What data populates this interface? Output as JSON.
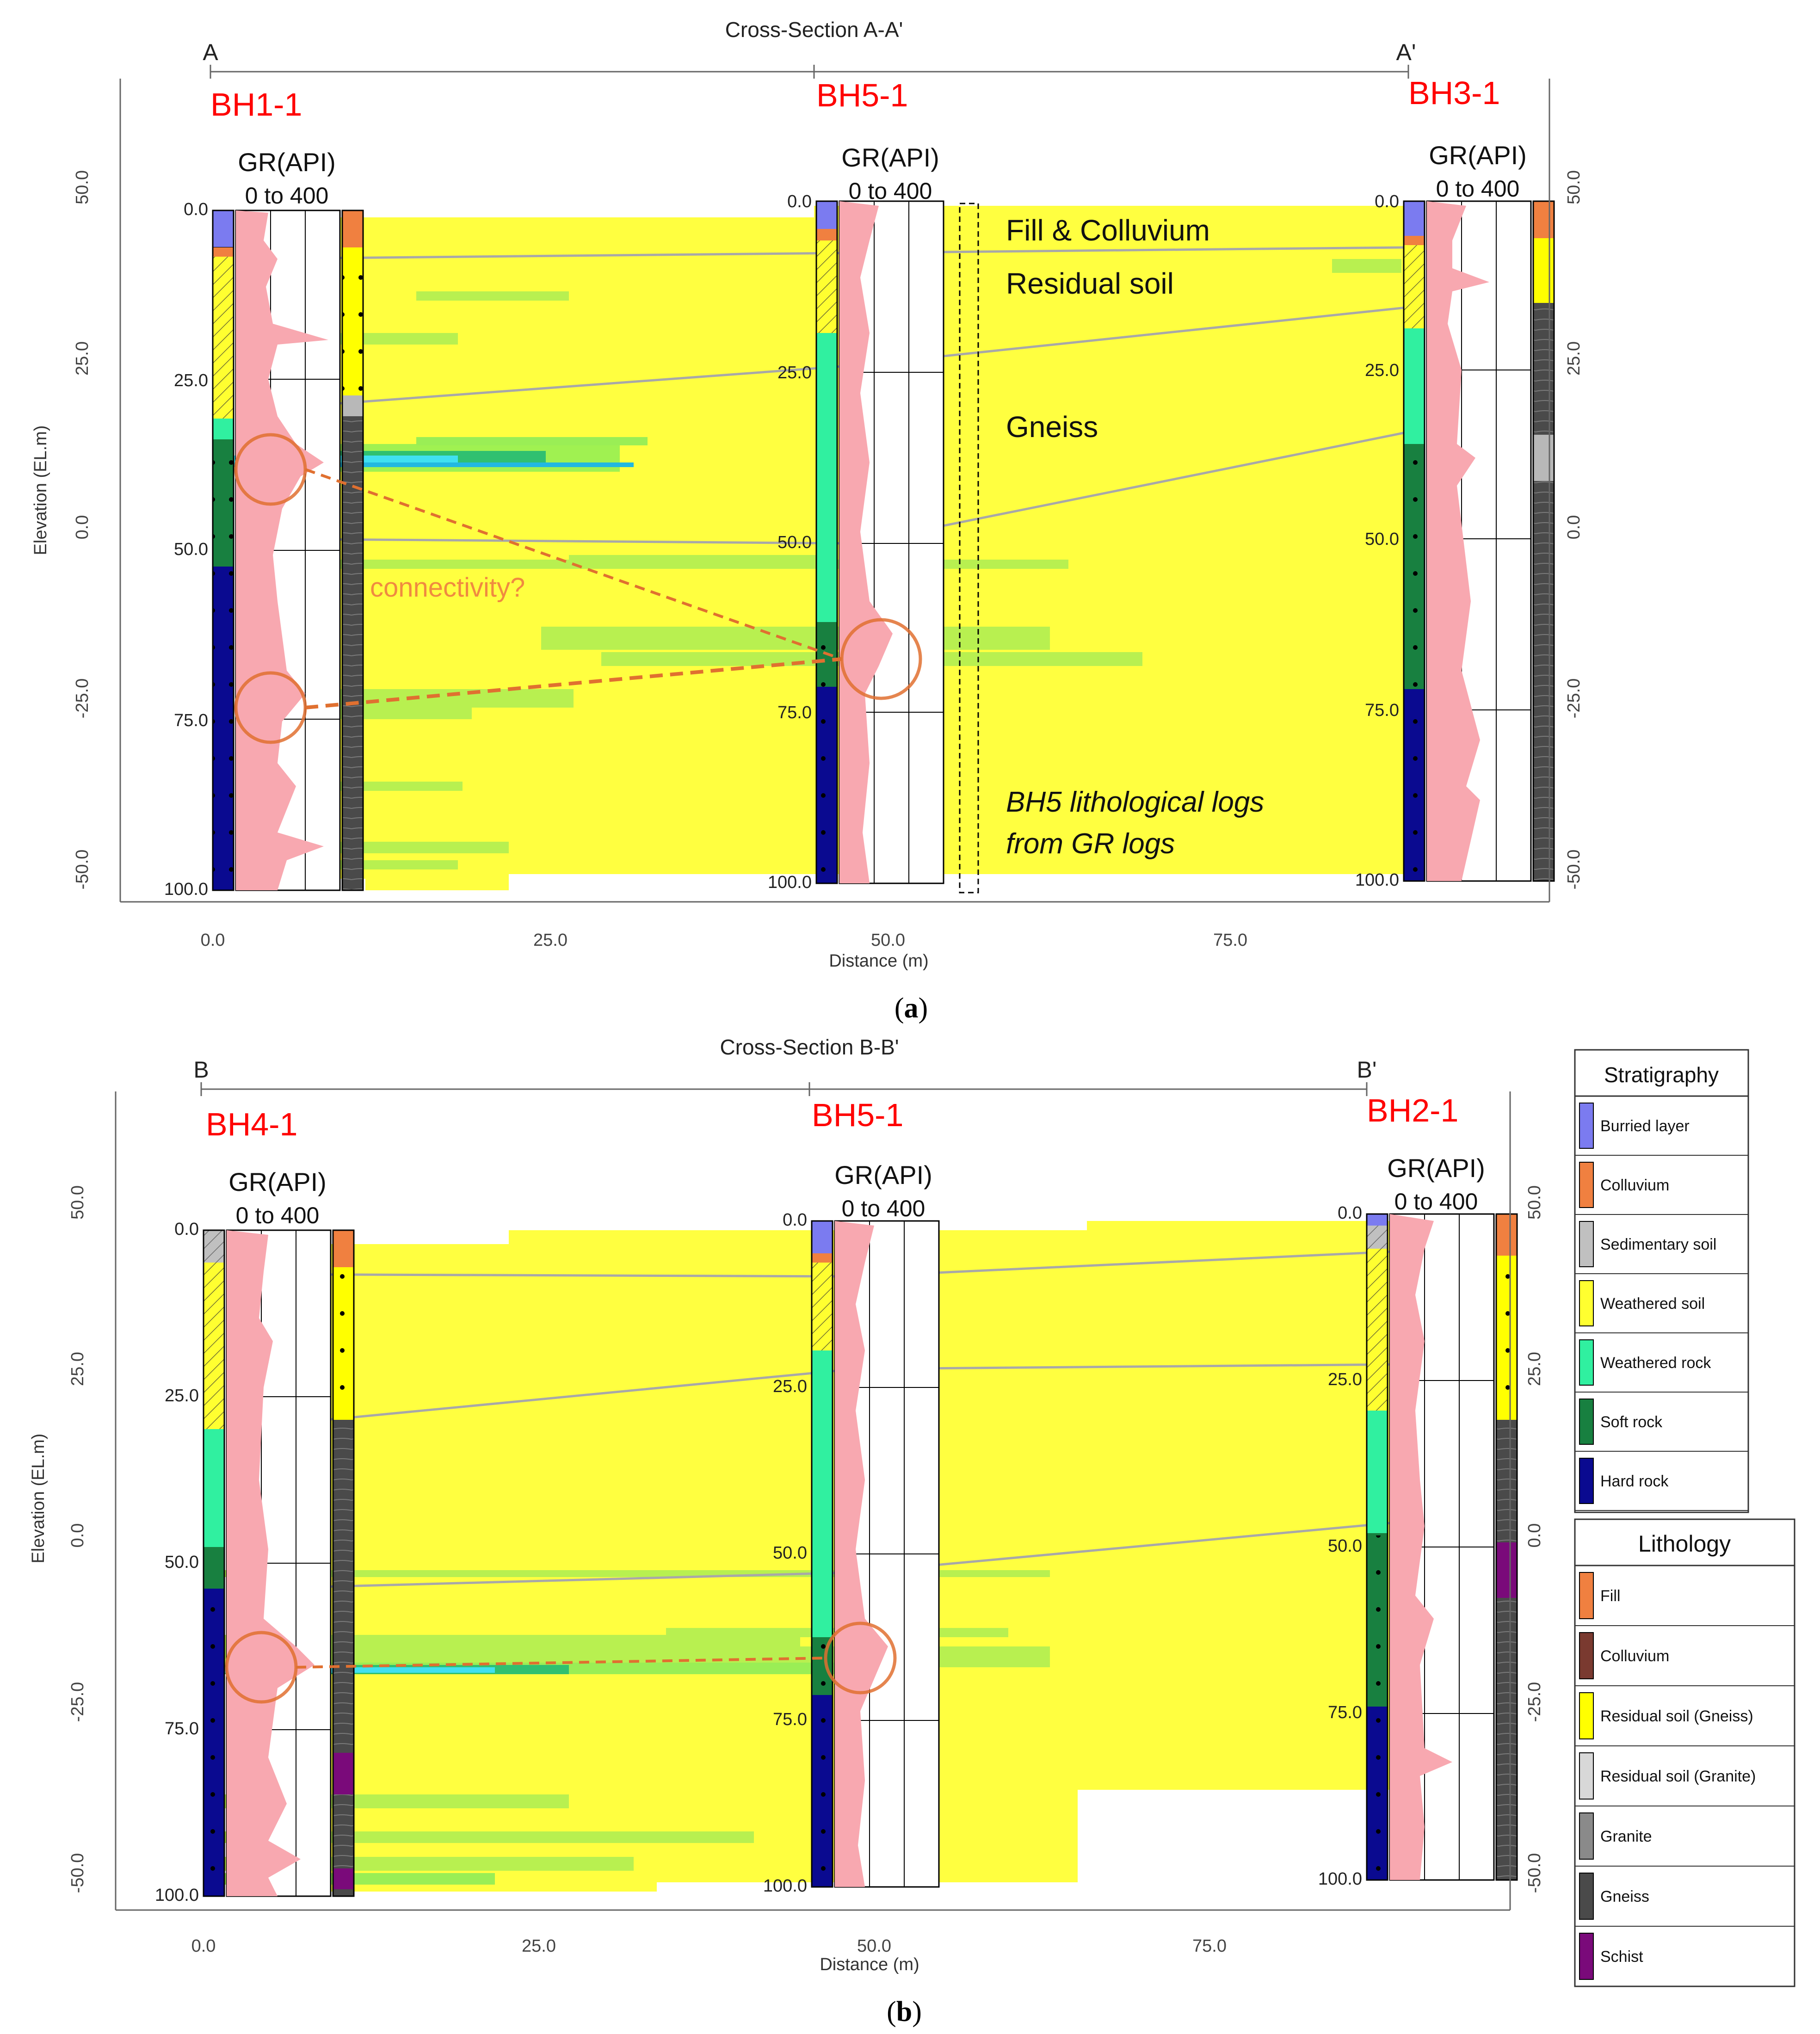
{
  "panels": [
    {
      "id": "a",
      "caption": "a",
      "title": "Cross-Section A-A'",
      "start_label": "A",
      "end_label": "A'",
      "y_axis_label": "Elevation (EL.m)",
      "elevation_ticks": [
        "50.0",
        "25.0",
        "0.0",
        "-25.0",
        "-50.0"
      ],
      "elevation_ticks_right": [
        "50.0",
        "25.0",
        "0.0",
        "-25.0",
        "-50.0"
      ],
      "distance_ticks": [
        "0.0",
        "25.0",
        "50.0",
        "75.0"
      ],
      "x_axis_label": "Distance (m)",
      "boreholes": [
        {
          "name": "BH1-1",
          "gr_label": "GR(API)",
          "gr_range": "0 to 400",
          "depth_ticks": [
            "0.0",
            "25.0",
            "50.0",
            "75.0",
            "100.0"
          ]
        },
        {
          "name": "BH5-1",
          "gr_label": "GR(API)",
          "gr_range": "0 to 400",
          "depth_ticks": [
            "0.0",
            "25.0",
            "50.0",
            "75.0",
            "100.0"
          ]
        },
        {
          "name": "BH3-1",
          "gr_label": "GR(API)",
          "gr_range": "0 to 400",
          "depth_ticks": [
            "0.0",
            "25.0",
            "50.0",
            "75.0",
            "100.0"
          ]
        }
      ],
      "annotations": {
        "fill": "Fill & Colluvium",
        "residual": "Residual soil",
        "gneiss": "Gneiss",
        "connectivity": "connectivity?",
        "bh5_note_line1": "BH5 lithological logs",
        "bh5_note_line2": "from GR logs"
      }
    },
    {
      "id": "b",
      "caption": "b",
      "title": "Cross-Section B-B'",
      "start_label": "B",
      "end_label": "B'",
      "y_axis_label": "Elevation (EL.m)",
      "elevation_ticks": [
        "50.0",
        "25.0",
        "0.0",
        "-25.0",
        "-50.0"
      ],
      "elevation_ticks_right": [
        "50.0",
        "25.0",
        "0.0",
        "-25.0",
        "-50.0"
      ],
      "distance_ticks": [
        "0.0",
        "25.0",
        "50.0",
        "75.0"
      ],
      "x_axis_label": "Distance (m)",
      "boreholes": [
        {
          "name": "BH4-1",
          "gr_label": "GR(API)",
          "gr_range": "0 to 400",
          "depth_ticks": [
            "0.0",
            "25.0",
            "50.0",
            "75.0",
            "100.0"
          ]
        },
        {
          "name": "BH5-1",
          "gr_label": "GR(API)",
          "gr_range": "0 to 400",
          "depth_ticks": [
            "0.0",
            "25.0",
            "50.0",
            "75.0",
            "100.0"
          ]
        },
        {
          "name": "BH2-1",
          "gr_label": "GR(API)",
          "gr_range": "0 to 400",
          "depth_ticks": [
            "0.0",
            "25.0",
            "50.0",
            "75.0",
            "100.0"
          ]
        }
      ]
    }
  ],
  "legend": {
    "stratigraphy_title": "Stratigraphy",
    "stratigraphy": [
      {
        "label": "Burried layer",
        "color": "#7b7bf0"
      },
      {
        "label": "Colluvium",
        "color": "#f08040"
      },
      {
        "label": "Sedimentary soil",
        "color": "#c0c0c0"
      },
      {
        "label": "Weathered soil",
        "color": "#ffff30"
      },
      {
        "label": "Weathered rock",
        "color": "#30f0a0"
      },
      {
        "label": "Soft rock",
        "color": "#188040"
      },
      {
        "label": "Hard rock",
        "color": "#0a0a90"
      }
    ],
    "lithology_title": "Lithology",
    "lithology": [
      {
        "label": "Fill",
        "color": "#f08040"
      },
      {
        "label": "Colluvium",
        "color": "#7a3a30"
      },
      {
        "label": "Residual soil (Gneiss)",
        "color": "#ffff00"
      },
      {
        "label": "Residual soil (Granite)",
        "color": "#d8d8d8"
      },
      {
        "label": "Granite",
        "color": "#8a8a8a"
      },
      {
        "label": "Gneiss",
        "color": "#4a4a4a"
      },
      {
        "label": "Schist",
        "color": "#7a0a7a"
      }
    ]
  },
  "colors": {
    "section_fill": "#ffff40",
    "gr_curve": "#f8a8b0",
    "borehole_label": "#ff0000",
    "highlight": "#e07030",
    "correlation_line": "#a8a8a8"
  }
}
